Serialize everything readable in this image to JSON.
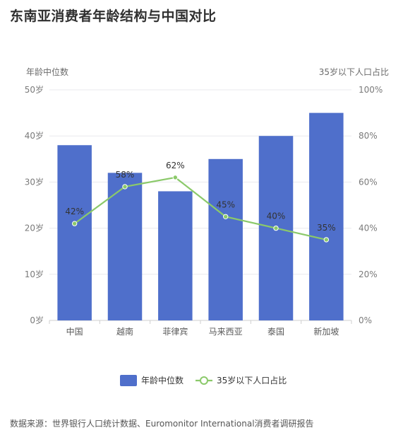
{
  "title": "东南亚消费者年龄结构与中国对比",
  "source": "数据来源：世界银行人口统计数据、Euromonitor International消费者调研报告",
  "chart_data": {
    "type": "bar",
    "categories": [
      "中国",
      "越南",
      "菲律宾",
      "马来西亚",
      "泰国",
      "新加坡"
    ],
    "series": [
      {
        "name": "年龄中位数",
        "type": "bar",
        "axis": "left",
        "values": [
          38,
          32,
          28,
          35,
          40,
          45
        ],
        "color": "#4f6fcb"
      },
      {
        "name": "35岁以下人口占比",
        "type": "line",
        "axis": "right",
        "values": [
          42,
          58,
          62,
          45,
          40,
          35
        ],
        "labels": [
          "42%",
          "58%",
          "62%",
          "45%",
          "40%",
          "35%"
        ],
        "color": "#8bc96a"
      }
    ],
    "y_left": {
      "label": "年龄中位数",
      "range": [
        0,
        50
      ],
      "ticks": [
        "0岁",
        "10岁",
        "20岁",
        "30岁",
        "40岁",
        "50岁"
      ]
    },
    "y_right": {
      "label": "35岁以下人口占比",
      "range": [
        0,
        100
      ],
      "ticks": [
        "0%",
        "20%",
        "40%",
        "60%",
        "80%",
        "100%"
      ]
    },
    "grid": true,
    "legend_position": "bottom-center"
  }
}
